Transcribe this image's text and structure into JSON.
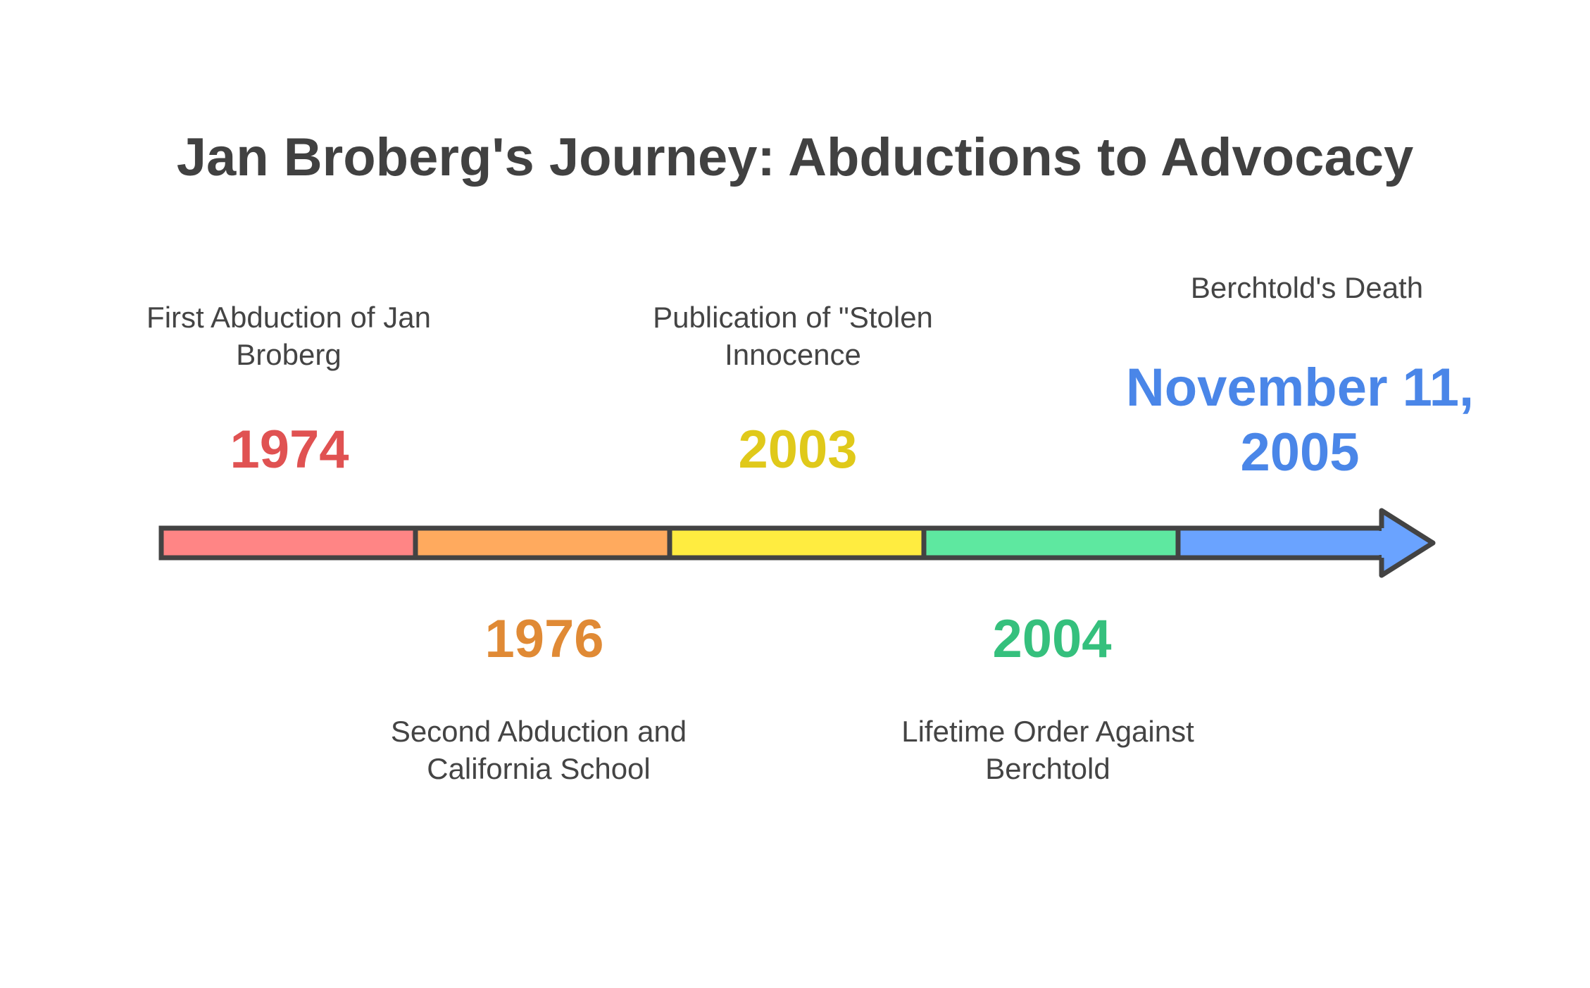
{
  "title": "Jan Broberg's Journey: Abductions to Advocacy",
  "colors": {
    "outline": "#434343",
    "background": "#ffffff"
  },
  "events": [
    {
      "year": "1974",
      "label": "First Abduction of Jan Broberg",
      "position": "above",
      "color": "#e05252",
      "fill": "#ff8585"
    },
    {
      "year": "1976",
      "label": "Second Abduction and California School",
      "position": "below",
      "color": "#e08a35",
      "fill": "#ffaa5e"
    },
    {
      "year": "2003",
      "label": "Publication of \"Stolen Innocence",
      "position": "above",
      "color": "#e0c91a",
      "fill": "#ffec40"
    },
    {
      "year": "2004",
      "label": "Lifetime Order Against Berchtold",
      "position": "below",
      "color": "#35c07d",
      "fill": "#5ee8a0"
    },
    {
      "year": "November 11, 2005",
      "label": "Berchtold's Death",
      "position": "above",
      "color": "#4a86e8",
      "fill": "#6aa3ff"
    }
  ]
}
